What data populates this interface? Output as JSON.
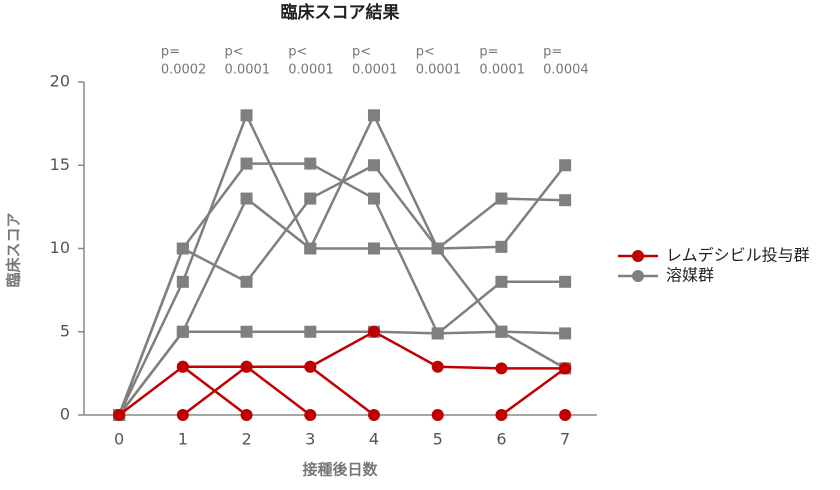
{
  "chart_data": {
    "type": "line",
    "title": "臨床スコア結果",
    "x_label": "接種後日数",
    "y_label": "臨床スコア",
    "x": [
      0,
      1,
      2,
      3,
      4,
      5,
      6,
      7
    ],
    "xlim": [
      -0.3,
      7.5
    ],
    "xticks": [
      0,
      1,
      2,
      3,
      4,
      5,
      6,
      7
    ],
    "ylim": [
      0,
      20
    ],
    "yticks": [
      0,
      5,
      10,
      15,
      20
    ],
    "annotations": [
      [
        "p=",
        "0.0002"
      ],
      [
        "p<",
        "0.0001"
      ],
      [
        "p<",
        "0.0001"
      ],
      [
        "p<",
        "0.0001"
      ],
      [
        "p<",
        "0.0001"
      ],
      [
        "p=",
        "0.0001"
      ],
      [
        "p=",
        "0.0004"
      ]
    ],
    "legend": "right",
    "series": [
      {
        "name": "レムデシビル投与群",
        "color": "#c00000",
        "marker": "circle",
        "values": [
          [
            0,
            2.9,
            2.9,
            2.9,
            5,
            2.9,
            2.8,
            2.8
          ],
          [
            null,
            2.9,
            0,
            null,
            null,
            null,
            0,
            2.8
          ],
          [
            null,
            0,
            2.9,
            0,
            null,
            null,
            null,
            null
          ],
          [
            null,
            null,
            null,
            2.9,
            0,
            null,
            null,
            null
          ],
          [
            null,
            null,
            null,
            null,
            null,
            0,
            null,
            0
          ]
        ]
      },
      {
        "name": "溶媒群",
        "color": "#7f7f7f",
        "marker": "square",
        "values": [
          [
            0,
            10,
            8,
            13,
            15,
            10,
            5,
            2.8
          ],
          [
            0,
            8,
            18,
            10,
            10,
            10,
            10.1,
            15
          ],
          [
            0,
            10,
            15.1,
            15.1,
            13,
            4.9,
            8,
            8
          ],
          [
            0,
            5,
            13,
            10,
            18,
            10,
            13,
            12.9
          ],
          [
            0,
            5,
            5,
            5,
            5,
            4.9,
            5,
            4.9
          ]
        ]
      }
    ]
  }
}
